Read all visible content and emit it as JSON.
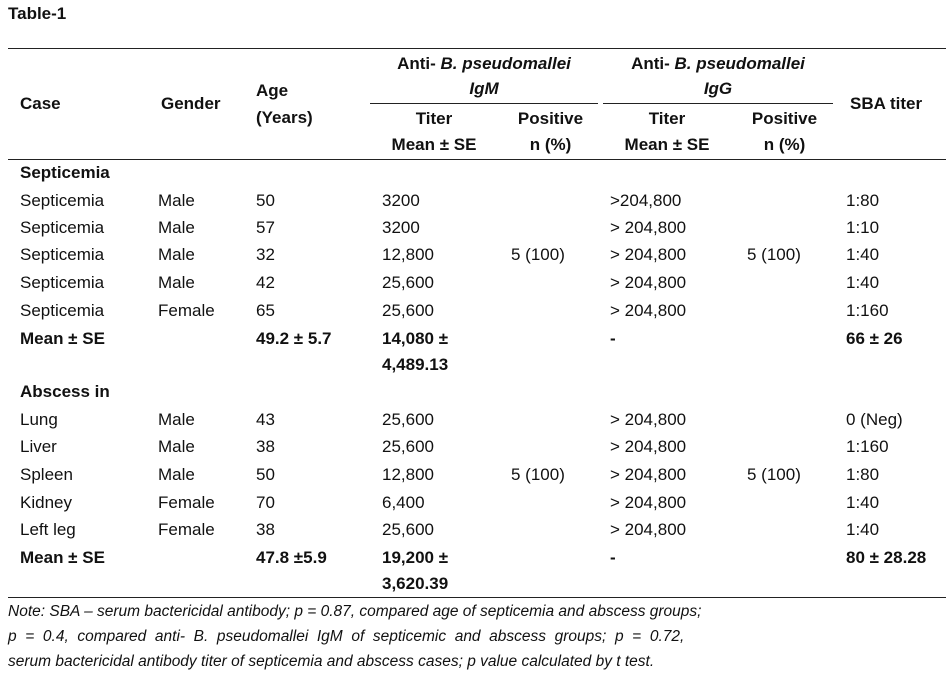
{
  "title": "Table-1",
  "header": {
    "case": "Case",
    "gender": "Gender",
    "age_line1": "Age",
    "age_line2": "(Years)",
    "igm_prefix": "Anti- ",
    "igm_species": "B. pseudomallei",
    "igm_class": "IgM",
    "igg_prefix": "Anti- ",
    "igg_species": "B. pseudomallei",
    "igg_class": "IgG",
    "titer": "Titer",
    "mean_se": "Mean ± SE",
    "positive": "Positive",
    "n_pct": "n (%)",
    "sba": "SBA titer"
  },
  "groups": [
    {
      "label": "Septicemia",
      "rows": [
        {
          "case": "Septicemia",
          "gender": "Male",
          "age": "50",
          "igm": "3200",
          "igg": ">204,800",
          "sba": "1:80"
        },
        {
          "case": "Septicemia",
          "gender": "Male",
          "age": "57",
          "igm": "3200",
          "igg": "> 204,800",
          "sba": "1:10"
        },
        {
          "case": "Septicemia",
          "gender": "Male",
          "age": "32",
          "igm": "12,800",
          "igg": "> 204,800",
          "sba": "1:40"
        },
        {
          "case": "Septicemia",
          "gender": "Male",
          "age": "42",
          "igm": "25,600",
          "igg": "> 204,800",
          "sba": "1:40"
        },
        {
          "case": "Septicemia",
          "gender": "Female",
          "age": "65",
          "igm": "25,600",
          "igg": "> 204,800",
          "sba": "1:160"
        }
      ],
      "igm_positive": "5 (100)",
      "igg_positive": "5 (100)",
      "mean": {
        "label": "Mean ± SE",
        "age": "49.2 ± 5.7",
        "igm_line1": "14,080 ±",
        "igm_line2": "4,489.13",
        "igg": "-",
        "sba": "66 ± 26"
      }
    },
    {
      "label": "Abscess in",
      "rows": [
        {
          "case": "Lung",
          "gender": "Male",
          "age": "43",
          "igm": "25,600",
          "igg": "> 204,800",
          "sba": "0 (Neg)"
        },
        {
          "case": "Liver",
          "gender": "Male",
          "age": "38",
          "igm": "25,600",
          "igg": "> 204,800",
          "sba": "1:160"
        },
        {
          "case": "Spleen",
          "gender": "Male",
          "age": "50",
          "igm": "12,800",
          "igg": "> 204,800",
          "sba": "1:80"
        },
        {
          "case": "Kidney",
          "gender": "Female",
          "age": "70",
          "igm": "6,400",
          "igg": "> 204,800",
          "sba": "1:40"
        },
        {
          "case": "Left leg",
          "gender": "Female",
          "age": "38",
          "igm": "25,600",
          "igg": "> 204,800",
          "sba": "1:40"
        }
      ],
      "igm_positive": "5 (100)",
      "igg_positive": "5 (100)",
      "mean": {
        "label": "Mean ± SE",
        "age": "47.8 ±5.9",
        "igm_line1": "19,200 ±",
        "igm_line2": "3,620.39",
        "igg": "-",
        "sba": "80 ± 28.28"
      }
    }
  ],
  "note": {
    "line1": "Note: SBA – serum bactericidal antibody; p = 0.87, compared age of septicemia and abscess groups;",
    "line2": "p  =  0.4,  compared  anti-  B.  pseudomallei  IgM  of  septicemic  and  abscess  groups;  p  =  0.72,",
    "line3": "serum bactericidal antibody titer of septicemia and abscess cases; p value calculated by t test."
  }
}
